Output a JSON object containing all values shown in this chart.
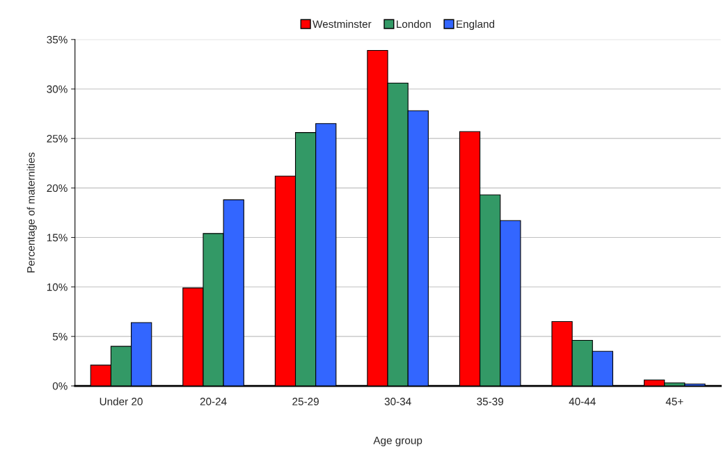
{
  "chart_data": {
    "type": "bar",
    "xlabel": "Age group",
    "ylabel": "Percentage of maternities",
    "categories": [
      "Under 20",
      "20-24",
      "25-29",
      "30-34",
      "35-39",
      "40-44",
      "45+"
    ],
    "series": [
      {
        "name": "Westminster",
        "color": "#ff0000",
        "values": [
          2.1,
          9.9,
          21.2,
          33.9,
          25.7,
          6.5,
          0.6
        ]
      },
      {
        "name": "London",
        "color": "#339966",
        "values": [
          4.0,
          15.4,
          25.6,
          30.6,
          19.3,
          4.6,
          0.3
        ]
      },
      {
        "name": "England",
        "color": "#3366ff",
        "values": [
          6.4,
          18.8,
          26.5,
          27.8,
          16.7,
          3.5,
          0.2
        ]
      }
    ],
    "ylim": [
      0,
      35
    ],
    "yticks": [
      {
        "value": 0,
        "label": "0%"
      },
      {
        "value": 5,
        "label": "5%"
      },
      {
        "value": 10,
        "label": "10%"
      },
      {
        "value": 15,
        "label": "15%"
      },
      {
        "value": 20,
        "label": "20%"
      },
      {
        "value": 25,
        "label": "25%"
      },
      {
        "value": 30,
        "label": "30%"
      },
      {
        "value": 35,
        "label": "35%"
      }
    ],
    "grid": "y",
    "legend": "top"
  }
}
